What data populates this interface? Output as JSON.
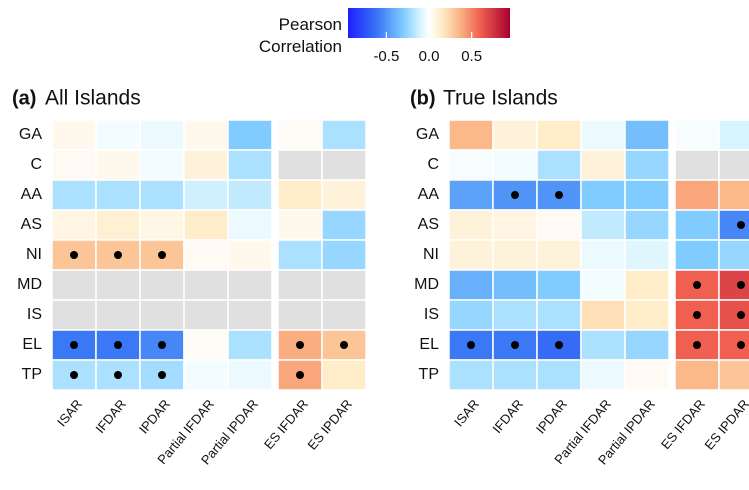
{
  "chart_data": {
    "type": "heatmap",
    "colorbar": {
      "title": "Pearson Correlation",
      "lim": [
        -0.95,
        0.95
      ],
      "ticks": [
        -0.5,
        {
          "value": 0,
          "label": "0.0"
        },
        0.5
      ],
      "colorscale": [
        [
          -0.95,
          "#1f1fff"
        ],
        [
          -0.6,
          "#3a78f5"
        ],
        [
          -0.3,
          "#80ccff"
        ],
        [
          -0.1,
          "#d8f4ff"
        ],
        [
          0,
          "#ffffff"
        ],
        [
          0.15,
          "#ffecc8"
        ],
        [
          0.35,
          "#fbb888"
        ],
        [
          0.6,
          "#f06050"
        ],
        [
          0.95,
          "#a80030"
        ]
      ]
    },
    "null_color": "#e0e0e0",
    "rows": [
      "GA",
      "C",
      "AA",
      "AS",
      "NI",
      "MD",
      "IS",
      "EL",
      "TP"
    ],
    "columns": [
      "ISAR",
      "IFDAR",
      "IPDAR",
      "Partial IFDAR",
      "Partial IPDAR",
      "ES IFDAR",
      "ES IPDAR"
    ],
    "panels": [
      {
        "label": "(a)",
        "title": "All Islands",
        "values": [
          [
            0.05,
            -0.03,
            -0.05,
            0.05,
            -0.3,
            0.02,
            -0.2
          ],
          [
            0.03,
            0.05,
            -0.03,
            0.1,
            -0.2,
            null,
            null
          ],
          [
            -0.2,
            -0.2,
            -0.2,
            -0.12,
            -0.15,
            0.15,
            0.1
          ],
          [
            0.08,
            0.12,
            0.07,
            0.15,
            -0.05,
            0.05,
            -0.25
          ],
          [
            0.3,
            0.3,
            0.3,
            0.03,
            0.05,
            -0.2,
            -0.25
          ],
          [
            null,
            null,
            null,
            null,
            null,
            null,
            null
          ],
          [
            null,
            null,
            null,
            null,
            null,
            null,
            null
          ],
          [
            -0.6,
            -0.6,
            -0.55,
            0.02,
            -0.2,
            0.38,
            0.3
          ],
          [
            -0.2,
            -0.2,
            -0.22,
            -0.03,
            -0.05,
            0.4,
            0.15
          ]
        ],
        "significant": [
          [
            false,
            false,
            false,
            false,
            false,
            false,
            false
          ],
          [
            false,
            false,
            false,
            false,
            false,
            false,
            false
          ],
          [
            false,
            false,
            false,
            false,
            false,
            false,
            false
          ],
          [
            false,
            false,
            false,
            false,
            false,
            false,
            false
          ],
          [
            true,
            true,
            true,
            false,
            false,
            false,
            false
          ],
          [
            false,
            false,
            false,
            false,
            false,
            false,
            false
          ],
          [
            false,
            false,
            false,
            false,
            false,
            false,
            false
          ],
          [
            true,
            true,
            true,
            false,
            false,
            true,
            true
          ],
          [
            true,
            true,
            true,
            false,
            false,
            true,
            false
          ]
        ]
      },
      {
        "label": "(b)",
        "title": "True Islands",
        "values": [
          [
            0.35,
            0.1,
            0.15,
            -0.05,
            -0.35,
            -0.02,
            -0.1
          ],
          [
            -0.02,
            -0.03,
            -0.2,
            0.1,
            -0.25,
            null,
            null
          ],
          [
            -0.45,
            -0.5,
            -0.5,
            -0.3,
            -0.3,
            0.4,
            0.35
          ],
          [
            0.1,
            0.08,
            0.03,
            -0.15,
            -0.25,
            -0.3,
            -0.55
          ],
          [
            0.1,
            0.1,
            0.1,
            -0.05,
            -0.08,
            -0.3,
            -0.25
          ],
          [
            -0.4,
            -0.35,
            -0.3,
            -0.03,
            0.15,
            0.6,
            0.7
          ],
          [
            -0.25,
            -0.2,
            -0.2,
            0.2,
            0.15,
            0.6,
            0.65
          ],
          [
            -0.6,
            -0.6,
            -0.65,
            -0.2,
            -0.25,
            0.6,
            0.6
          ],
          [
            -0.2,
            -0.2,
            -0.2,
            -0.05,
            0.03,
            0.35,
            0.3
          ]
        ],
        "significant": [
          [
            false,
            false,
            false,
            false,
            false,
            false,
            false
          ],
          [
            false,
            false,
            false,
            false,
            false,
            false,
            false
          ],
          [
            false,
            true,
            true,
            false,
            false,
            false,
            false
          ],
          [
            false,
            false,
            false,
            false,
            false,
            false,
            true
          ],
          [
            false,
            false,
            false,
            false,
            false,
            false,
            false
          ],
          [
            false,
            false,
            false,
            false,
            false,
            true,
            true
          ],
          [
            false,
            false,
            false,
            false,
            false,
            true,
            true
          ],
          [
            true,
            true,
            true,
            false,
            false,
            true,
            true
          ],
          [
            false,
            false,
            false,
            false,
            false,
            false,
            false
          ]
        ]
      }
    ]
  }
}
